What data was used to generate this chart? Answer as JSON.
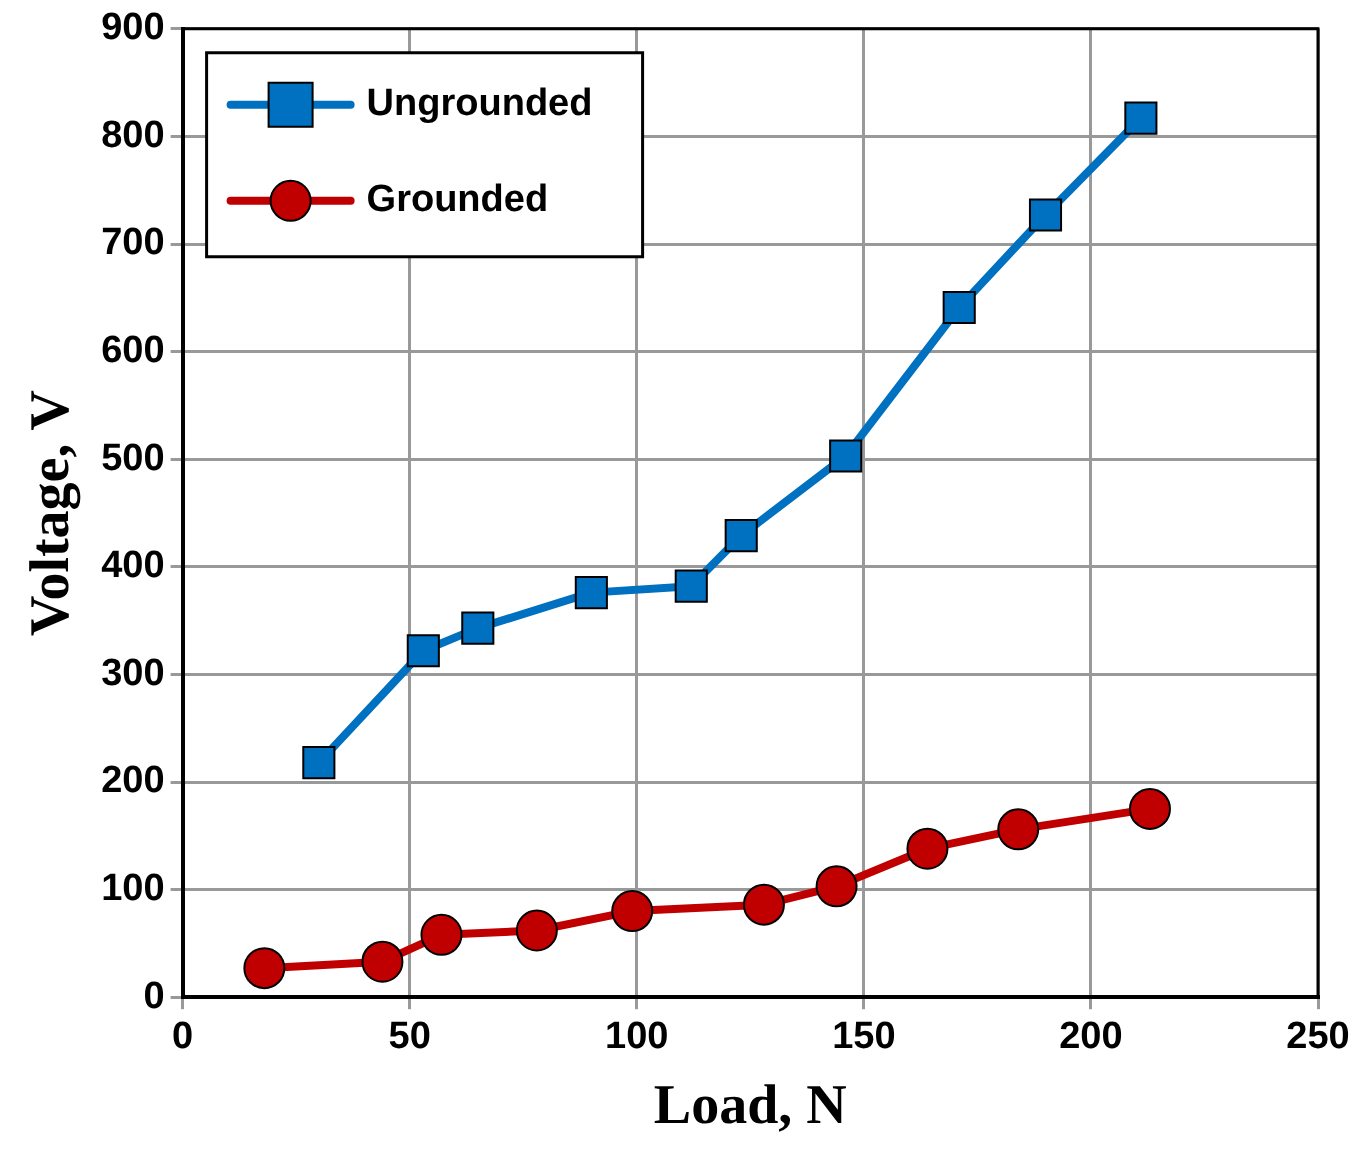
{
  "chart_data": {
    "type": "line",
    "xlabel": "Load, N",
    "ylabel": "Voltage, V",
    "xlim": [
      0,
      250
    ],
    "xticks": [
      0,
      50,
      100,
      150,
      200,
      250
    ],
    "ylim": [
      0,
      900
    ],
    "yticks": [
      0,
      100,
      200,
      300,
      400,
      500,
      600,
      700,
      800,
      900
    ],
    "grid": true,
    "legend": "top left",
    "series": [
      {
        "name": "Ungrounded",
        "color": "#0070c0",
        "marker": "square",
        "x": [
          30,
          53,
          65,
          90,
          112,
          123,
          146,
          171,
          190,
          211
        ],
        "values": [
          218,
          322,
          343,
          376,
          382,
          429,
          503,
          641,
          727,
          817
        ]
      },
      {
        "name": "Grounded",
        "color": "#c00000",
        "marker": "circle",
        "x": [
          18,
          44,
          57,
          78,
          99,
          128,
          144,
          164,
          184,
          213
        ],
        "values": [
          27,
          33,
          58,
          62,
          80,
          86,
          103,
          138,
          156,
          175
        ]
      }
    ]
  }
}
